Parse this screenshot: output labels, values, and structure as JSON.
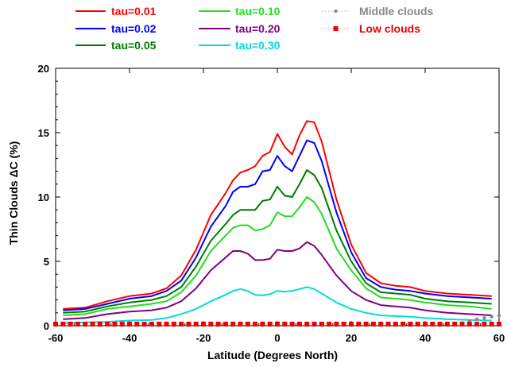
{
  "chart_data": {
    "type": "line",
    "xlabel": "Latitude (Degrees North)",
    "ylabel": "Thin Clouds ΔC (%)",
    "xlim": [
      -60,
      60
    ],
    "ylim": [
      0,
      20
    ],
    "xticks": [
      -60,
      -40,
      -20,
      0,
      20,
      40,
      60
    ],
    "yticks": [
      0,
      5,
      10,
      15,
      20
    ],
    "x": [
      -58,
      -52,
      -46,
      -40,
      -34,
      -30,
      -26,
      -22,
      -18,
      -14,
      -12,
      -10,
      -8,
      -6,
      -4,
      -2,
      0,
      2,
      4,
      6,
      8,
      10,
      12,
      16,
      20,
      24,
      28,
      32,
      36,
      40,
      46,
      52,
      58
    ],
    "series": [
      {
        "name": "tau=0.01",
        "color": "#ff0000",
        "style": "solid",
        "values": [
          1.3,
          1.4,
          1.9,
          2.3,
          2.5,
          2.9,
          3.9,
          5.9,
          8.6,
          10.3,
          11.3,
          11.9,
          12.1,
          12.4,
          13.2,
          13.5,
          14.9,
          13.9,
          13.3,
          14.8,
          15.9,
          15.8,
          14.3,
          9.8,
          6.3,
          4.1,
          3.3,
          3.1,
          3.0,
          2.7,
          2.5,
          2.4,
          2.3
        ]
      },
      {
        "name": "tau=0.02",
        "color": "#0000ff",
        "style": "solid",
        "values": [
          1.2,
          1.3,
          1.7,
          2.1,
          2.3,
          2.7,
          3.5,
          5.3,
          7.7,
          9.3,
          10.4,
          10.8,
          10.8,
          11.0,
          12.0,
          12.1,
          13.2,
          12.4,
          12.0,
          13.2,
          14.4,
          14.2,
          12.8,
          8.8,
          5.7,
          3.7,
          3.0,
          2.8,
          2.7,
          2.5,
          2.3,
          2.2,
          2.1
        ]
      },
      {
        "name": "tau=0.05",
        "color": "#007a00",
        "style": "solid",
        "values": [
          1.0,
          1.1,
          1.5,
          1.8,
          2.0,
          2.3,
          3.0,
          4.6,
          6.6,
          7.9,
          8.6,
          9.0,
          9.0,
          9.0,
          9.7,
          9.8,
          10.8,
          10.1,
          10.0,
          11.0,
          12.1,
          11.7,
          10.7,
          7.4,
          5.0,
          3.3,
          2.6,
          2.5,
          2.4,
          2.1,
          1.9,
          1.8,
          1.7
        ]
      },
      {
        "name": "tau=0.10",
        "color": "#22dd22",
        "style": "solid",
        "values": [
          0.8,
          0.9,
          1.3,
          1.5,
          1.7,
          1.9,
          2.6,
          3.9,
          5.8,
          7.0,
          7.6,
          7.8,
          7.8,
          7.4,
          7.5,
          7.8,
          8.8,
          8.5,
          8.5,
          9.2,
          10.0,
          9.6,
          8.7,
          6.0,
          4.3,
          2.9,
          2.2,
          2.1,
          2.0,
          1.8,
          1.6,
          1.5,
          1.3
        ]
      },
      {
        "name": "tau=0.20",
        "color": "#800080",
        "style": "solid",
        "values": [
          0.5,
          0.6,
          0.9,
          1.1,
          1.2,
          1.4,
          1.9,
          2.9,
          4.3,
          5.3,
          5.8,
          5.8,
          5.6,
          5.1,
          5.1,
          5.2,
          5.9,
          5.8,
          5.8,
          6.0,
          6.5,
          6.2,
          5.5,
          3.9,
          2.7,
          2.0,
          1.6,
          1.5,
          1.4,
          1.2,
          1.0,
          0.9,
          0.8
        ]
      },
      {
        "name": "tau=0.30",
        "color": "#00dddd",
        "style": "solid",
        "values": [
          0.2,
          0.25,
          0.3,
          0.4,
          0.45,
          0.6,
          0.9,
          1.3,
          1.9,
          2.4,
          2.7,
          2.85,
          2.7,
          2.4,
          2.35,
          2.45,
          2.7,
          2.65,
          2.7,
          2.85,
          3.0,
          2.85,
          2.5,
          1.8,
          1.3,
          1.0,
          0.8,
          0.75,
          0.7,
          0.6,
          0.5,
          0.45,
          0.4
        ]
      },
      {
        "name": "Middle clouds",
        "color": "#888888",
        "style": "dotted",
        "x": [
          -60,
          -56,
          -52,
          -48,
          -44,
          -40,
          -36,
          -32,
          -28,
          -24,
          -20,
          -16,
          -12,
          -8,
          -4,
          0,
          4,
          8,
          12,
          16,
          20,
          24,
          28,
          32,
          36,
          40,
          44,
          48,
          50,
          52,
          54,
          56,
          58,
          60
        ],
        "values": [
          0.05,
          0.05,
          0.05,
          0.05,
          0.05,
          0.05,
          0.05,
          0.05,
          0.05,
          0.05,
          0.05,
          0.05,
          0.05,
          0.05,
          0.05,
          0.05,
          0.05,
          0.05,
          0.05,
          0.05,
          0.05,
          0.05,
          0.05,
          0.05,
          0.05,
          0.05,
          0.05,
          0.1,
          0.2,
          0.35,
          0.5,
          0.6,
          0.7,
          0.8
        ]
      },
      {
        "name": "Low clouds",
        "color": "#ee0000",
        "style": "dotted",
        "x": [
          -60,
          -58,
          -56,
          -54,
          -52,
          -50,
          -48,
          -46,
          -44,
          -42,
          -40,
          -38,
          -36,
          -34,
          -32,
          -30,
          -28,
          -26,
          -24,
          -22,
          -20,
          -18,
          -16,
          -14,
          -12,
          -10,
          -8,
          -6,
          -4,
          -2,
          0,
          2,
          4,
          6,
          8,
          10,
          12,
          14,
          16,
          18,
          20,
          22,
          24,
          26,
          28,
          30,
          32,
          34,
          36,
          38,
          40,
          42,
          44,
          46,
          48,
          50,
          52,
          54,
          56,
          58,
          60
        ],
        "values": [
          0.0,
          0.0,
          0.0,
          0.0,
          0.0,
          0.0,
          0.0,
          0.0,
          0.0,
          0.0,
          0.0,
          0.0,
          0.0,
          0.0,
          0.0,
          0.0,
          0.0,
          0.0,
          0.0,
          0.0,
          0.0,
          0.0,
          0.0,
          0.0,
          0.0,
          0.0,
          0.0,
          0.0,
          0.0,
          0.0,
          0.0,
          0.0,
          0.0,
          0.0,
          0.0,
          0.0,
          0.0,
          0.0,
          0.0,
          0.0,
          0.0,
          0.0,
          0.0,
          0.0,
          0.0,
          0.0,
          0.0,
          0.0,
          0.0,
          0.0,
          0.0,
          0.0,
          0.0,
          0.0,
          0.0,
          0.0,
          0.0,
          0.0,
          0.0,
          0.0,
          0.0
        ]
      }
    ],
    "legend": {
      "placement": "top",
      "entries": [
        {
          "label": "tau=0.01",
          "color": "#ff0000"
        },
        {
          "label": "tau=0.02",
          "color": "#0000ff"
        },
        {
          "label": "tau=0.05",
          "color": "#007a00"
        },
        {
          "label": "tau=0.10",
          "color": "#22dd22"
        },
        {
          "label": "tau=0.20",
          "color": "#800080"
        },
        {
          "label": "tau=0.30",
          "color": "#00dddd"
        },
        {
          "label": "Middle clouds",
          "color": "#888888"
        },
        {
          "label": "Low clouds",
          "color": "#ee0000"
        }
      ]
    }
  }
}
